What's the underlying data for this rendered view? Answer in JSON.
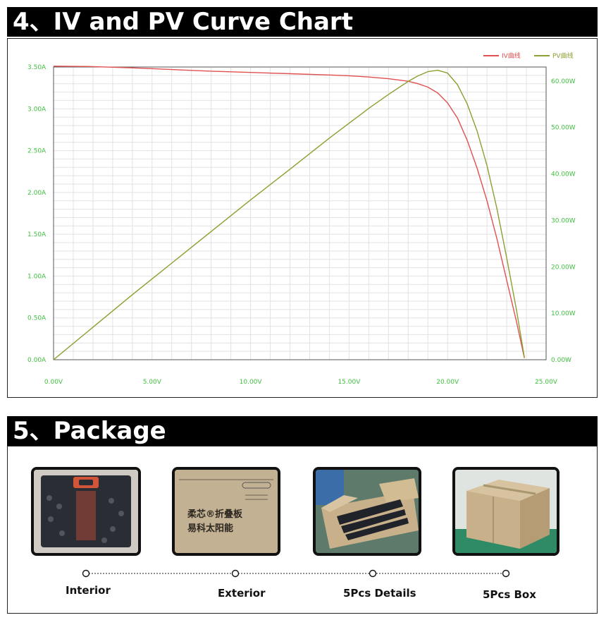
{
  "sections": {
    "chart_title": "4、IV and PV Curve Chart",
    "package_title": "5、Package"
  },
  "chart_data": {
    "type": "line",
    "title": "4、IV and PV Curve Chart",
    "xlabel": "",
    "ylabel": "",
    "x_ticks": [
      "0.00V",
      "5.00V",
      "10.00V",
      "15.00V",
      "20.00V",
      "25.00V"
    ],
    "y_left_ticks": [
      "0.00A",
      "0.50A",
      "1.00A",
      "1.50A",
      "2.00A",
      "2.50A",
      "3.00A",
      "3.50A"
    ],
    "y_right_ticks": [
      "0.00W",
      "10.00W",
      "20.00W",
      "30.00W",
      "40.00W",
      "50.00W",
      "60.00W"
    ],
    "xlim": [
      0,
      25
    ],
    "ylim_left": [
      0,
      3.5
    ],
    "ylim_right": [
      0,
      63
    ],
    "grid": true,
    "legend_position": "top-right",
    "colors": {
      "iv": "#e05050",
      "pv": "#8aa030",
      "axis_text": "#3fbf3f",
      "grid": "#e2e2e2"
    },
    "series": [
      {
        "name": "IV曲线",
        "axis": "left",
        "x": [
          0,
          2,
          4,
          6,
          8,
          10,
          12,
          14,
          15,
          16,
          17,
          18,
          18.5,
          19,
          19.5,
          20,
          20.5,
          21,
          21.5,
          22,
          22.5,
          23,
          23.5,
          23.9
        ],
        "y": [
          3.51,
          3.505,
          3.49,
          3.47,
          3.45,
          3.435,
          3.42,
          3.405,
          3.395,
          3.38,
          3.36,
          3.33,
          3.3,
          3.26,
          3.19,
          3.07,
          2.89,
          2.62,
          2.29,
          1.9,
          1.45,
          0.95,
          0.45,
          0.02
        ]
      },
      {
        "name": "PV曲线",
        "axis": "right",
        "x": [
          0,
          2,
          4,
          6,
          8,
          10,
          12,
          14,
          15,
          16,
          17,
          18,
          18.5,
          19,
          19.5,
          20,
          20.5,
          21,
          21.5,
          22,
          22.5,
          23,
          23.5,
          23.9
        ],
        "y": [
          0,
          7.0,
          14.0,
          20.8,
          27.6,
          34.4,
          41.0,
          47.7,
          50.9,
          54.1,
          57.1,
          59.9,
          61.1,
          62.0,
          62.3,
          61.7,
          59.2,
          55.0,
          49.2,
          41.8,
          32.6,
          21.9,
          10.6,
          0.5
        ]
      }
    ]
  },
  "package": {
    "items": [
      {
        "label": "Interior"
      },
      {
        "label": "Exterior"
      },
      {
        "label": "5Pcs Details"
      },
      {
        "label": "5Pcs Box"
      }
    ],
    "box_print_line1": "柔芯®折叠板",
    "box_print_line2": "易科太阳能"
  }
}
